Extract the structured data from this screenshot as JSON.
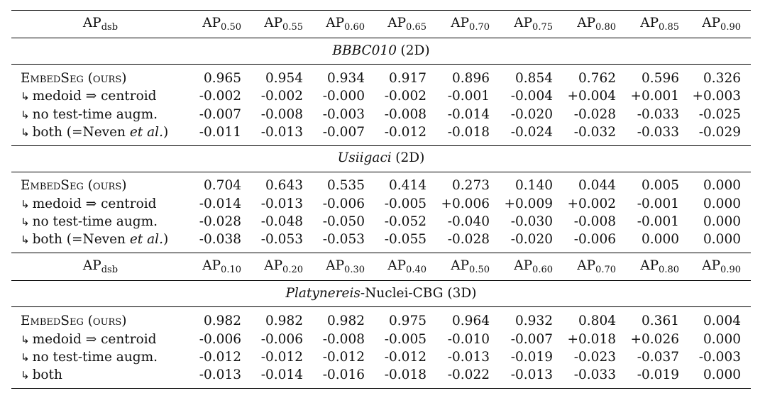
{
  "table": {
    "blocks": [
      {
        "header": {
          "label_main": "AP",
          "label_sub": "dsb",
          "columns": [
            {
              "main": "AP",
              "sub": "0.50"
            },
            {
              "main": "AP",
              "sub": "0.55"
            },
            {
              "main": "AP",
              "sub": "0.60"
            },
            {
              "main": "AP",
              "sub": "0.65"
            },
            {
              "main": "AP",
              "sub": "0.70"
            },
            {
              "main": "AP",
              "sub": "0.75"
            },
            {
              "main": "AP",
              "sub": "0.80"
            },
            {
              "main": "AP",
              "sub": "0.85"
            },
            {
              "main": "AP",
              "sub": "0.90"
            }
          ]
        },
        "dataset": {
          "name": "BBBC010",
          "suffix": "(2D)"
        },
        "rows": [
          {
            "method": "EmbedSeg (ours)",
            "values": [
              "0.965",
              "0.954",
              "0.934",
              "0.917",
              "0.896",
              "0.854",
              "0.762",
              "0.596",
              "0.326"
            ]
          },
          {
            "method": "medoid ⇒ centroid",
            "values": [
              "-0.002",
              "-0.002",
              "-0.000",
              "-0.002",
              "-0.001",
              "-0.004",
              "+0.004",
              "+0.001",
              "+0.003"
            ]
          },
          {
            "method": "no test-time augm.",
            "values": [
              "-0.007",
              "-0.008",
              "-0.003",
              "-0.008",
              "-0.014",
              "-0.020",
              "-0.028",
              "-0.033",
              "-0.025"
            ]
          },
          {
            "method": "both (=Neven",
            "method_italic": "et al.",
            "method_end": ")",
            "values": [
              "-0.011",
              "-0.013",
              "-0.007",
              "-0.012",
              "-0.018",
              "-0.024",
              "-0.032",
              "-0.033",
              "-0.029"
            ]
          }
        ]
      },
      {
        "dataset": {
          "name": "Usiigaci",
          "suffix": "(2D)"
        },
        "rows": [
          {
            "method": "EmbedSeg (ours)",
            "values": [
              "0.704",
              "0.643",
              "0.535",
              "0.414",
              "0.273",
              "0.140",
              "0.044",
              "0.005",
              "0.000"
            ]
          },
          {
            "method": "medoid ⇒ centroid",
            "values": [
              "-0.014",
              "-0.013",
              "-0.006",
              "-0.005",
              "+0.006",
              "+0.009",
              "+0.002",
              "-0.001",
              "0.000"
            ]
          },
          {
            "method": "no test-time augm.",
            "values": [
              "-0.028",
              "-0.048",
              "-0.050",
              "-0.052",
              "-0.040",
              "-0.030",
              "-0.008",
              "-0.001",
              "0.000"
            ]
          },
          {
            "method": "both (=Neven",
            "method_italic": "et al.",
            "method_end": ")",
            "values": [
              "-0.038",
              "-0.053",
              "-0.053",
              "-0.055",
              "-0.028",
              "-0.020",
              "-0.006",
              "0.000",
              "0.000"
            ]
          }
        ]
      },
      {
        "header": {
          "label_main": "AP",
          "label_sub": "dsb",
          "columns": [
            {
              "main": "AP",
              "sub": "0.10"
            },
            {
              "main": "AP",
              "sub": "0.20"
            },
            {
              "main": "AP",
              "sub": "0.30"
            },
            {
              "main": "AP",
              "sub": "0.40"
            },
            {
              "main": "AP",
              "sub": "0.50"
            },
            {
              "main": "AP",
              "sub": "0.60"
            },
            {
              "main": "AP",
              "sub": "0.70"
            },
            {
              "main": "AP",
              "sub": "0.80"
            },
            {
              "main": "AP",
              "sub": "0.90"
            }
          ]
        },
        "dataset": {
          "name": "Platynereis",
          "suffix": "-Nuclei-CBG (3D)"
        },
        "rows": [
          {
            "method": "EmbedSeg (ours)",
            "values": [
              "0.982",
              "0.982",
              "0.982",
              "0.975",
              "0.964",
              "0.932",
              "0.804",
              "0.361",
              "0.004"
            ]
          },
          {
            "method": "medoid ⇒ centroid",
            "values": [
              "-0.006",
              "-0.006",
              "-0.008",
              "-0.005",
              "-0.010",
              "-0.007",
              "+0.018",
              "+0.026",
              "0.000"
            ]
          },
          {
            "method": "no test-time augm.",
            "values": [
              "-0.012",
              "-0.012",
              "-0.012",
              "-0.012",
              "-0.013",
              "-0.019",
              "-0.023",
              "-0.037",
              "-0.003"
            ]
          },
          {
            "method": "both",
            "values": [
              "-0.013",
              "-0.014",
              "-0.016",
              "-0.018",
              "-0.022",
              "-0.013",
              "-0.033",
              "-0.019",
              "0.000"
            ]
          }
        ]
      }
    ],
    "sub_row_prefix": "↳"
  }
}
